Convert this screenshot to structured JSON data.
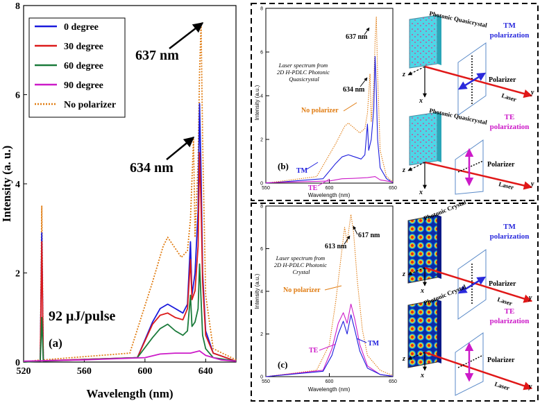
{
  "chart_data": [
    {
      "id": "a",
      "type": "line",
      "panel_label": "(a)",
      "xlabel": "Wavelength (nm)",
      "ylabel": "Intensity (a. u.)",
      "xlim": [
        520,
        660
      ],
      "ylim": [
        0,
        8
      ],
      "xticks": [
        520,
        560,
        600,
        640
      ],
      "yticks": [
        0,
        2,
        4,
        6,
        8
      ],
      "legend": [
        "0 degree",
        "30 degree",
        "60 degree",
        "90 degree",
        "No polarizer"
      ],
      "annotations": {
        "peak1": "637 nm",
        "peak2": "634 nm",
        "energy": "92 μJ/pulse"
      },
      "series": [
        {
          "name": "No polarizer",
          "color": "#e07b10",
          "dash": "dotted",
          "points": [
            [
              520,
              0
            ],
            [
              531,
              0.05
            ],
            [
              532,
              3.5
            ],
            [
              533,
              0.05
            ],
            [
              590,
              0.2
            ],
            [
              605,
              1.8
            ],
            [
              612,
              2.6
            ],
            [
              615,
              2.8
            ],
            [
              620,
              2.55
            ],
            [
              624,
              2.35
            ],
            [
              628,
              2.5
            ],
            [
              630,
              3.2
            ],
            [
              632,
              5.0
            ],
            [
              633,
              2.8
            ],
            [
              635,
              4.5
            ],
            [
              636,
              6.5
            ],
            [
              637,
              7.6
            ],
            [
              638,
              5.0
            ],
            [
              640,
              1.5
            ],
            [
              645,
              0.3
            ],
            [
              660,
              0.05
            ]
          ]
        },
        {
          "name": "0 degree",
          "color": "#1a1adc",
          "dash": "solid",
          "points": [
            [
              520,
              0
            ],
            [
              531,
              0.03
            ],
            [
              532,
              2.9
            ],
            [
              533,
              0.03
            ],
            [
              595,
              0.1
            ],
            [
              605,
              0.9
            ],
            [
              610,
              1.2
            ],
            [
              615,
              1.3
            ],
            [
              620,
              1.2
            ],
            [
              625,
              1.1
            ],
            [
              628,
              1.3
            ],
            [
              630,
              2.7
            ],
            [
              631,
              1.5
            ],
            [
              633,
              2.0
            ],
            [
              635,
              3.4
            ],
            [
              636,
              5.8
            ],
            [
              637,
              4.2
            ],
            [
              638,
              2.0
            ],
            [
              640,
              0.7
            ],
            [
              645,
              0.2
            ],
            [
              660,
              0.02
            ]
          ]
        },
        {
          "name": "30 degree",
          "color": "#dc1a1a",
          "dash": "solid",
          "points": [
            [
              520,
              0
            ],
            [
              531,
              0.03
            ],
            [
              532,
              2.7
            ],
            [
              533,
              0.03
            ],
            [
              595,
              0.1
            ],
            [
              605,
              0.85
            ],
            [
              610,
              1.05
            ],
            [
              615,
              1.1
            ],
            [
              620,
              1.0
            ],
            [
              625,
              0.95
            ],
            [
              628,
              1.2
            ],
            [
              630,
              2.3
            ],
            [
              631,
              1.4
            ],
            [
              633,
              1.6
            ],
            [
              635,
              2.6
            ],
            [
              636,
              4.7
            ],
            [
              637,
              3.5
            ],
            [
              638,
              1.8
            ],
            [
              640,
              0.6
            ],
            [
              645,
              0.2
            ],
            [
              660,
              0.02
            ]
          ]
        },
        {
          "name": "60 degree",
          "color": "#1a7a3a",
          "dash": "solid",
          "points": [
            [
              520,
              0
            ],
            [
              531,
              0.02
            ],
            [
              532,
              1.0
            ],
            [
              533,
              0.02
            ],
            [
              595,
              0.1
            ],
            [
              605,
              0.55
            ],
            [
              610,
              0.75
            ],
            [
              615,
              0.85
            ],
            [
              620,
              0.7
            ],
            [
              625,
              0.6
            ],
            [
              628,
              0.7
            ],
            [
              630,
              1.5
            ],
            [
              631,
              0.8
            ],
            [
              633,
              0.9
            ],
            [
              635,
              1.2
            ],
            [
              636,
              2.2
            ],
            [
              637,
              1.4
            ],
            [
              638,
              0.6
            ],
            [
              640,
              0.3
            ],
            [
              645,
              0.1
            ],
            [
              660,
              0.02
            ]
          ]
        },
        {
          "name": "90 degree",
          "color": "#cc1ac8",
          "dash": "solid",
          "points": [
            [
              520,
              0.02
            ],
            [
              560,
              0.05
            ],
            [
              600,
              0.1
            ],
            [
              610,
              0.18
            ],
            [
              620,
              0.2
            ],
            [
              630,
              0.2
            ],
            [
              636,
              0.25
            ],
            [
              640,
              0.15
            ],
            [
              650,
              0.05
            ],
            [
              660,
              0.02
            ]
          ]
        }
      ]
    },
    {
      "id": "b",
      "type": "line",
      "panel_label": "(b)",
      "xlabel": "Wavelength (nm)",
      "ylabel": "Intensity (a.u.)",
      "xlim": [
        550,
        650
      ],
      "ylim": [
        0,
        8
      ],
      "xticks": [
        550,
        600,
        650
      ],
      "yticks": [
        0,
        2,
        4,
        6,
        8
      ],
      "annotations": {
        "peak1": "637 nm",
        "peak2": "634 nm",
        "desc": "Laser spectrum from 2D H-PDLC Photonic Quasicrystal",
        "no_pol": "No polarizer",
        "tm": "TM",
        "te": "TE"
      },
      "series": [
        {
          "name": "No polarizer",
          "color": "#e07b10",
          "dash": "dotted",
          "points": [
            [
              550,
              0
            ],
            [
              590,
              0.3
            ],
            [
              605,
              1.8
            ],
            [
              612,
              2.6
            ],
            [
              615,
              2.75
            ],
            [
              620,
              2.5
            ],
            [
              624,
              2.3
            ],
            [
              628,
              2.5
            ],
            [
              630,
              3.2
            ],
            [
              632,
              5.0
            ],
            [
              633,
              2.8
            ],
            [
              635,
              4.5
            ],
            [
              636,
              6.5
            ],
            [
              637,
              7.6
            ],
            [
              638,
              5.0
            ],
            [
              640,
              1.5
            ],
            [
              645,
              0.3
            ],
            [
              650,
              0.05
            ]
          ]
        },
        {
          "name": "TM",
          "color": "#1a1adc",
          "dash": "solid",
          "points": [
            [
              550,
              0
            ],
            [
              595,
              0.2
            ],
            [
              605,
              0.9
            ],
            [
              610,
              1.2
            ],
            [
              615,
              1.3
            ],
            [
              620,
              1.2
            ],
            [
              625,
              1.1
            ],
            [
              628,
              1.3
            ],
            [
              630,
              2.7
            ],
            [
              631,
              1.5
            ],
            [
              633,
              2.0
            ],
            [
              635,
              3.4
            ],
            [
              636,
              5.8
            ],
            [
              637,
              4.2
            ],
            [
              638,
              2.0
            ],
            [
              640,
              0.7
            ],
            [
              645,
              0.2
            ],
            [
              650,
              0.02
            ]
          ]
        },
        {
          "name": "TE",
          "color": "#cc1ac8",
          "dash": "solid",
          "points": [
            [
              550,
              0.02
            ],
            [
              600,
              0.1
            ],
            [
              610,
              0.2
            ],
            [
              620,
              0.22
            ],
            [
              630,
              0.25
            ],
            [
              636,
              0.3
            ],
            [
              640,
              0.15
            ],
            [
              650,
              0.05
            ]
          ]
        }
      ]
    },
    {
      "id": "c",
      "type": "line",
      "panel_label": "(c)",
      "xlabel": "Wavelength (nm)",
      "ylabel": "Intensity (a.u.)",
      "xlim": [
        550,
        650
      ],
      "ylim": [
        0,
        8
      ],
      "xticks": [
        550,
        600,
        650
      ],
      "yticks": [
        0,
        2,
        4,
        6,
        8
      ],
      "annotations": {
        "peak1": "613 nm",
        "peak2": "617 nm",
        "desc": "Laser spectrum from 2D H-PDLC Photonic Crystal",
        "no_pol": "No polarizer",
        "tm": "TM",
        "te": "TE"
      },
      "series": [
        {
          "name": "No polarizer",
          "color": "#e07b10",
          "dash": "dotted",
          "points": [
            [
              550,
              0
            ],
            [
              590,
              0.3
            ],
            [
              600,
              1.5
            ],
            [
              605,
              3.5
            ],
            [
              609,
              5.5
            ],
            [
              612,
              7.0
            ],
            [
              614,
              6.3
            ],
            [
              617,
              7.6
            ],
            [
              619,
              6.8
            ],
            [
              622,
              4.5
            ],
            [
              626,
              2.2
            ],
            [
              630,
              1.0
            ],
            [
              640,
              0.3
            ],
            [
              650,
              0.05
            ]
          ]
        },
        {
          "name": "TE",
          "color": "#cc1ac8",
          "dash": "solid",
          "points": [
            [
              550,
              0
            ],
            [
              595,
              0.3
            ],
            [
              602,
              1.3
            ],
            [
              607,
              2.5
            ],
            [
              611,
              3.0
            ],
            [
              614,
              2.5
            ],
            [
              617,
              3.4
            ],
            [
              620,
              2.7
            ],
            [
              624,
              1.5
            ],
            [
              630,
              0.5
            ],
            [
              640,
              0.1
            ],
            [
              650,
              0.02
            ]
          ]
        },
        {
          "name": "TM",
          "color": "#1a1adc",
          "dash": "solid",
          "points": [
            [
              550,
              0
            ],
            [
              595,
              0.25
            ],
            [
              602,
              1.0
            ],
            [
              607,
              2.0
            ],
            [
              611,
              2.6
            ],
            [
              614,
              2.0
            ],
            [
              617,
              2.9
            ],
            [
              620,
              2.2
            ],
            [
              624,
              1.2
            ],
            [
              630,
              0.4
            ],
            [
              640,
              0.1
            ],
            [
              650,
              0.02
            ]
          ]
        }
      ]
    }
  ],
  "schematics": {
    "b_top": {
      "material": "Photonic Quasicrystal",
      "polarization": "TM polarization",
      "polarizer": "Polarizer",
      "laser": "Laser",
      "axis_x": "x",
      "axis_y": "y",
      "axis_z": "z",
      "material_color": "#4fd6e6",
      "pol_color": "#2a2adc"
    },
    "b_bottom": {
      "material": "Photonic Quasicrystal",
      "polarization": "TE polarization",
      "polarizer": "Polarizer",
      "laser": "Laser",
      "axis_x": "x",
      "axis_y": "y",
      "axis_z": "z",
      "material_color": "#4fd6e6",
      "pol_color": "#cc1ac8"
    },
    "c_top": {
      "material": "Photonic Crystal",
      "polarization": "TM polarization",
      "polarizer": "Polarizer",
      "laser": "Laser",
      "axis_x": "x",
      "axis_y": "y",
      "axis_z": "z",
      "pol_color": "#2a2adc"
    },
    "c_bottom": {
      "material": "Photonic Crystal",
      "polarization": "TE polarization",
      "polarizer": "Polarizer",
      "laser": "Laser",
      "axis_x": "x",
      "axis_y": "y",
      "axis_z": "z",
      "pol_color": "#cc1ac8"
    }
  }
}
